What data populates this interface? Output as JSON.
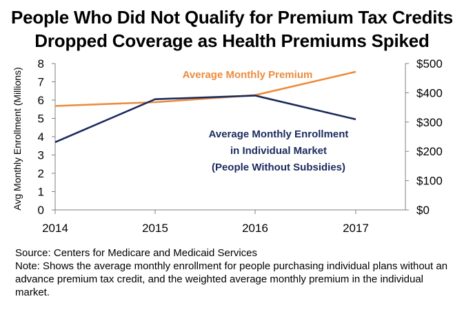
{
  "title": {
    "line1": "People Who Did Not Qualify for Premium Tax Credits",
    "line2": "Dropped Coverage as Health Premiums Spiked"
  },
  "chart_data": {
    "type": "line",
    "x": [
      "2014",
      "2015",
      "2016",
      "2017"
    ],
    "ylabel": "Avg Monthly Enrollment (Millions)",
    "ylim": [
      0,
      8
    ],
    "y_ticks": [
      "0",
      "1",
      "2",
      "3",
      "4",
      "5",
      "6",
      "7",
      "8"
    ],
    "y2lim": [
      0,
      500
    ],
    "y2_ticks": [
      "$0",
      "$100",
      "$200",
      "$300",
      "$400",
      "$500"
    ],
    "grid": false,
    "series": [
      {
        "name": "Average Monthly Enrollment in Individual Market (People Without Subsidies)",
        "label_lines": [
          "Average Monthly Enrollment",
          "in Individual Market",
          "(People Without Subsidies)"
        ],
        "axis": "left",
        "color": "#1a2a5e",
        "values": [
          3.7,
          6.05,
          6.25,
          4.95
        ]
      },
      {
        "name": "Average Monthly Premium",
        "label_lines": [
          "Average Monthly Premium"
        ],
        "axis": "right",
        "color": "#ed8b3b",
        "values": [
          355,
          368,
          392,
          472
        ]
      }
    ]
  },
  "footer": {
    "source": "Source: Centers for Medicare and Medicaid Services",
    "note": "Note: Shows the average monthly enrollment for people purchasing individual plans without an advance premium tax credit, and the weighted average monthly premium in the individual market."
  }
}
